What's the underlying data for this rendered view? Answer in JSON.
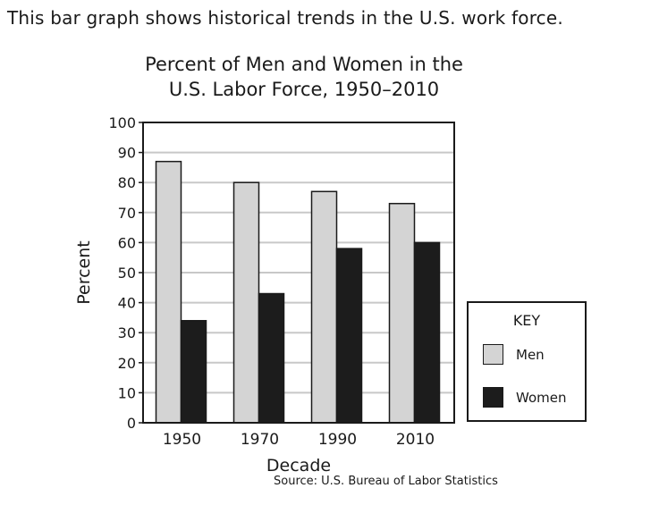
{
  "intro_text": "This bar graph shows historical trends in the U.S. work force.",
  "colors": {
    "men": "#d4d4d4",
    "women": "#1c1c1c",
    "grid": "#c8c8c8",
    "axis": "#1a1a1a"
  },
  "chart_data": {
    "type": "bar",
    "title_line1": "Percent of Men and Women in the",
    "title_line2": "U.S. Labor Force, 1950–2010",
    "xlabel": "Decade",
    "ylabel": "Percent",
    "categories": [
      "1950",
      "1970",
      "1990",
      "2010"
    ],
    "series": [
      {
        "name": "Men",
        "values": [
          87,
          80,
          77,
          73
        ]
      },
      {
        "name": "Women",
        "values": [
          34,
          43,
          58,
          60
        ]
      }
    ],
    "ylim": [
      0,
      100
    ],
    "yticks": [
      0,
      10,
      20,
      30,
      40,
      50,
      60,
      70,
      80,
      90,
      100
    ],
    "grid": true,
    "legend_title": "KEY",
    "legend_position": "right",
    "source": "Source: U.S. Bureau of Labor Statistics"
  }
}
